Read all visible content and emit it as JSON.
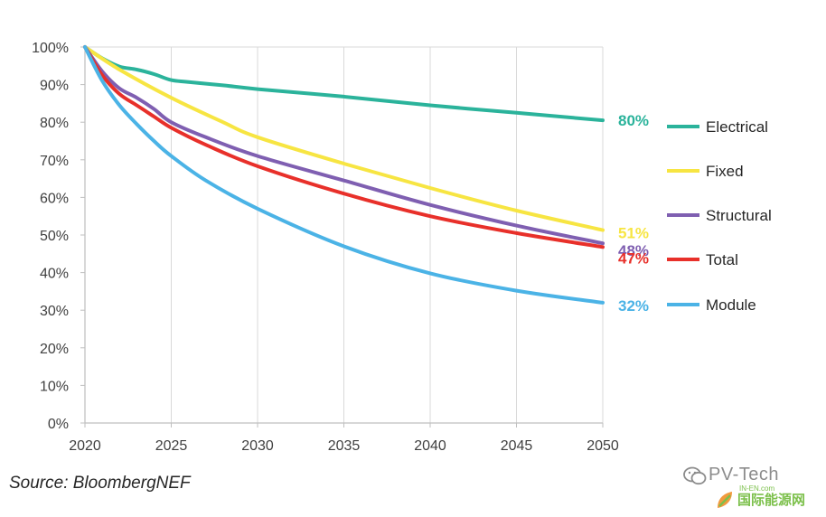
{
  "chart_data": {
    "type": "line",
    "title": "",
    "xlabel": "",
    "ylabel": "",
    "xlim": [
      2020,
      2050
    ],
    "ylim": [
      0,
      100
    ],
    "x_ticks": [
      "2020",
      "2025",
      "2030",
      "2035",
      "2040",
      "2045",
      "2050"
    ],
    "y_ticks": [
      "0%",
      "10%",
      "20%",
      "30%",
      "40%",
      "50%",
      "60%",
      "70%",
      "80%",
      "90%",
      "100%"
    ],
    "grid": "vertical",
    "legend_position": "right",
    "series": [
      {
        "name": "Electrical",
        "color": "#2bb39b",
        "end_label": "80%",
        "points": [
          [
            2020,
            100
          ],
          [
            2021,
            97
          ],
          [
            2022,
            94.8
          ],
          [
            2023,
            94
          ],
          [
            2024,
            92.8
          ],
          [
            2025,
            91.2
          ],
          [
            2026,
            90.7
          ],
          [
            2028,
            89.8
          ],
          [
            2030,
            88.8
          ],
          [
            2035,
            86.8
          ],
          [
            2040,
            84.5
          ],
          [
            2045,
            82.5
          ],
          [
            2050,
            80.5
          ]
        ]
      },
      {
        "name": "Fixed",
        "color": "#f7e542",
        "end_label": "51%",
        "points": [
          [
            2020,
            100
          ],
          [
            2022,
            94
          ],
          [
            2025,
            86.5
          ],
          [
            2028,
            80
          ],
          [
            2030,
            76
          ],
          [
            2035,
            69
          ],
          [
            2040,
            62.5
          ],
          [
            2045,
            56.5
          ],
          [
            2050,
            51.3
          ]
        ]
      },
      {
        "name": "Structural",
        "color": "#7f5fb1",
        "end_label": "48%",
        "points": [
          [
            2020,
            100
          ],
          [
            2021,
            93.5
          ],
          [
            2022,
            89
          ],
          [
            2023,
            86.5
          ],
          [
            2024,
            83.5
          ],
          [
            2025,
            80
          ],
          [
            2027,
            76
          ],
          [
            2030,
            71
          ],
          [
            2035,
            64.5
          ],
          [
            2040,
            58
          ],
          [
            2045,
            52.5
          ],
          [
            2050,
            47.8
          ]
        ]
      },
      {
        "name": "Total",
        "color": "#e8302a",
        "end_label": "47%",
        "points": [
          [
            2020,
            100
          ],
          [
            2021,
            92.5
          ],
          [
            2022,
            87.5
          ],
          [
            2023,
            84.5
          ],
          [
            2024,
            81.5
          ],
          [
            2025,
            78.5
          ],
          [
            2027,
            74
          ],
          [
            2030,
            68.3
          ],
          [
            2035,
            61
          ],
          [
            2040,
            55
          ],
          [
            2045,
            50.5
          ],
          [
            2050,
            46.8
          ]
        ]
      },
      {
        "name": "Module",
        "color": "#4bb3e6",
        "end_label": "32%",
        "points": [
          [
            2020,
            100
          ],
          [
            2021,
            91
          ],
          [
            2022,
            84.5
          ],
          [
            2023,
            79.5
          ],
          [
            2024,
            75
          ],
          [
            2025,
            71
          ],
          [
            2027,
            64.5
          ],
          [
            2030,
            57
          ],
          [
            2035,
            47
          ],
          [
            2040,
            39.8
          ],
          [
            2045,
            35.2
          ],
          [
            2050,
            32
          ]
        ]
      }
    ]
  },
  "source": "Source: BloombergNEF",
  "watermark": {
    "title": "PV-Tech",
    "domain": "IN-EN.com",
    "subtitle": "国际能源网"
  }
}
